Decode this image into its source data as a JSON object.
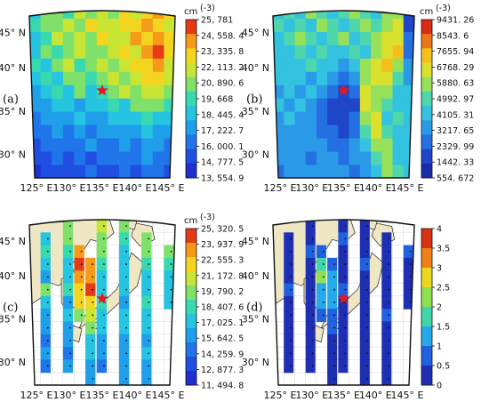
{
  "chart_data": [
    {
      "type": "heatmap",
      "panel_label": "(a)",
      "colorbar_unit": "cm",
      "colorbar_unit_exp": "(-3)",
      "colorbar_ticks": [
        "25, 781",
        "24, 558. 4",
        "23, 335. 8",
        "22, 113. 2",
        "20, 890. 6",
        "19, 668",
        "18, 445. 4",
        "17, 222. 7",
        "16, 000. 1",
        "14, 777. 5",
        "13, 554. 9"
      ],
      "vmin": 13554.9,
      "vmax": 25781,
      "x_ticks": [
        "125° E",
        "130° E",
        "135° E",
        "140° E",
        "145° E"
      ],
      "y_ticks": [
        "45° N",
        "40° N",
        "35° N",
        "30° N"
      ],
      "lon_range": [
        125,
        145
      ],
      "lat_range": [
        26,
        48
      ],
      "marker": {
        "lon": 135,
        "lat": 37.5,
        "symbol": "star"
      },
      "grid_rows": [
        [
          0.45,
          0.55,
          0.6,
          0.5,
          0.65,
          0.55,
          0.7,
          0.6,
          0.75,
          0.7,
          0.8,
          0.85,
          0.75
        ],
        [
          0.5,
          0.6,
          0.55,
          0.7,
          0.6,
          0.75,
          0.65,
          0.7,
          0.8,
          0.75,
          0.9,
          0.8,
          0.7
        ],
        [
          0.4,
          0.5,
          0.65,
          0.55,
          0.7,
          0.6,
          0.75,
          0.65,
          0.7,
          0.85,
          0.8,
          0.9,
          0.75
        ],
        [
          0.45,
          0.55,
          0.5,
          0.6,
          0.65,
          0.55,
          0.6,
          0.7,
          0.75,
          0.7,
          0.85,
          0.95,
          0.8
        ],
        [
          0.5,
          0.45,
          0.55,
          0.65,
          0.5,
          0.6,
          0.7,
          0.55,
          0.65,
          0.8,
          0.75,
          0.85,
          0.7
        ],
        [
          0.4,
          0.5,
          0.45,
          0.55,
          0.6,
          0.5,
          0.55,
          0.65,
          0.6,
          0.7,
          0.8,
          0.75,
          0.65
        ],
        [
          0.35,
          0.45,
          0.5,
          0.4,
          0.55,
          0.45,
          0.5,
          0.55,
          0.65,
          0.6,
          0.7,
          0.65,
          0.55
        ],
        [
          0.3,
          0.35,
          0.4,
          0.45,
          0.35,
          0.4,
          0.45,
          0.5,
          0.45,
          0.55,
          0.6,
          0.55,
          0.5
        ],
        [
          0.25,
          0.3,
          0.35,
          0.3,
          0.4,
          0.35,
          0.3,
          0.4,
          0.45,
          0.4,
          0.5,
          0.45,
          0.4
        ],
        [
          0.2,
          0.25,
          0.3,
          0.25,
          0.3,
          0.2,
          0.3,
          0.35,
          0.3,
          0.35,
          0.4,
          0.35,
          0.3
        ],
        [
          0.15,
          0.2,
          0.25,
          0.2,
          0.25,
          0.3,
          0.2,
          0.25,
          0.3,
          0.25,
          0.35,
          0.3,
          0.25
        ],
        [
          0.1,
          0.15,
          0.2,
          0.15,
          0.2,
          0.15,
          0.25,
          0.2,
          0.25,
          0.2,
          0.3,
          0.25,
          0.2
        ],
        [
          0.05,
          0.1,
          0.15,
          0.1,
          0.15,
          0.2,
          0.1,
          0.15,
          0.2,
          0.15,
          0.25,
          0.2,
          0.15
        ]
      ]
    },
    {
      "type": "heatmap",
      "panel_label": "(b)",
      "colorbar_unit": "cm",
      "colorbar_unit_exp": "(-3)",
      "colorbar_ticks": [
        "9431. 26",
        "8543. 6",
        "7655. 94",
        "6768. 29",
        "5880. 63",
        "4992. 97",
        "4105. 31",
        "3217. 65",
        "2329. 99",
        "1442. 33",
        "554. 672"
      ],
      "vmin": 554.672,
      "vmax": 9431.26,
      "x_ticks": [
        "125° E",
        "130° E",
        "135° E",
        "140° E",
        "145° E"
      ],
      "y_ticks": [
        "45° N",
        "40° N",
        "35° N",
        "30° N"
      ],
      "lon_range": [
        125,
        145
      ],
      "lat_range": [
        26,
        48
      ],
      "marker": {
        "lon": 135,
        "lat": 37.5,
        "symbol": "star"
      },
      "grid_rows": [
        [
          0.45,
          0.5,
          0.45,
          0.55,
          0.5,
          0.45,
          0.5,
          0.55,
          0.5,
          0.45,
          0.55,
          0.6,
          0.1
        ],
        [
          0.5,
          0.45,
          0.5,
          0.45,
          0.55,
          0.5,
          0.45,
          0.5,
          0.55,
          0.5,
          0.6,
          0.65,
          0.15
        ],
        [
          0.45,
          0.5,
          0.55,
          0.5,
          0.45,
          0.5,
          0.55,
          0.45,
          0.5,
          0.55,
          0.65,
          0.7,
          0.2
        ],
        [
          0.4,
          0.45,
          0.5,
          0.45,
          0.5,
          0.45,
          0.4,
          0.5,
          0.45,
          0.6,
          0.7,
          0.75,
          0.25
        ],
        [
          0.45,
          0.4,
          0.45,
          0.5,
          0.4,
          0.45,
          0.35,
          0.4,
          0.55,
          0.65,
          0.75,
          0.6,
          0.3
        ],
        [
          0.4,
          0.45,
          0.4,
          0.35,
          0.45,
          0.3,
          0.25,
          0.35,
          0.6,
          0.7,
          0.65,
          0.5,
          0.35
        ],
        [
          0.35,
          0.4,
          0.35,
          0.4,
          0.3,
          0.2,
          0.15,
          0.2,
          0.65,
          0.6,
          0.55,
          0.45,
          0.4
        ],
        [
          0.4,
          0.35,
          0.4,
          0.3,
          0.25,
          0.15,
          0.1,
          0.15,
          0.7,
          0.55,
          0.5,
          0.45,
          0.4
        ],
        [
          0.35,
          0.4,
          0.35,
          0.35,
          0.2,
          0.15,
          0.1,
          0.2,
          0.6,
          0.65,
          0.45,
          0.5,
          0.45
        ],
        [
          0.3,
          0.35,
          0.3,
          0.35,
          0.25,
          0.2,
          0.15,
          0.25,
          0.5,
          0.7,
          0.5,
          0.45,
          0.4
        ],
        [
          0.35,
          0.3,
          0.35,
          0.3,
          0.3,
          0.25,
          0.2,
          0.3,
          0.4,
          0.6,
          0.55,
          0.4,
          0.45
        ],
        [
          0.3,
          0.35,
          0.3,
          0.25,
          0.35,
          0.3,
          0.25,
          0.3,
          0.35,
          0.5,
          0.6,
          0.45,
          0.4
        ],
        [
          0.25,
          0.3,
          0.35,
          0.3,
          0.3,
          0.35,
          0.3,
          0.25,
          0.35,
          0.4,
          0.55,
          0.5,
          0.45
        ]
      ]
    },
    {
      "type": "heatmap",
      "panel_label": "(c)",
      "colorbar_unit": "cm",
      "colorbar_unit_exp": "(-3)",
      "colorbar_ticks": [
        "25, 320. 5",
        "23, 937. 9",
        "22, 555. 3",
        "21, 172. 8",
        "19, 790. 2",
        "18, 407. 6",
        "17, 025. 1",
        "15, 642. 5",
        "14, 259. 9",
        "12, 877. 3",
        "11, 494. 8"
      ],
      "vmin": 11494.8,
      "vmax": 25320.5,
      "x_ticks": [
        "125° E",
        "130° E",
        "135° E",
        "140° E",
        "145° E"
      ],
      "y_ticks": [
        "45° N",
        "40° N",
        "35° N",
        "30° N"
      ],
      "lon_range": [
        125,
        145
      ],
      "lat_range": [
        26,
        48
      ],
      "marker": {
        "lon": 135,
        "lat": 37.5,
        "symbol": "star"
      },
      "tracks": [
        {
          "col": 1,
          "rows": [
            1,
            2,
            3,
            4,
            5,
            6,
            7,
            8,
            9,
            10,
            11
          ],
          "values": [
            0.45,
            0.5,
            0.4,
            0.35,
            0.55,
            0.4,
            0.3,
            0.35,
            0.25,
            0.3,
            0.2
          ]
        },
        {
          "col": 3,
          "rows": [
            0,
            1,
            2,
            3,
            4,
            5,
            6,
            7,
            8,
            9,
            10,
            11
          ],
          "values": [
            0.55,
            0.6,
            0.5,
            0.45,
            0.4,
            0.5,
            0.35,
            0.4,
            0.3,
            0.35,
            0.25,
            0.3
          ]
        },
        {
          "col": 4,
          "rows": [
            2,
            3,
            4,
            5,
            6,
            7
          ],
          "values": [
            0.85,
            0.95,
            0.9,
            0.8,
            0.75,
            0.6
          ]
        },
        {
          "col": 5,
          "rows": [
            3,
            4,
            5,
            6,
            7,
            8,
            9,
            10,
            11,
            12
          ],
          "values": [
            0.85,
            0.9,
            0.95,
            0.8,
            0.7,
            0.55,
            0.45,
            0.4,
            0.35,
            0.3
          ]
        },
        {
          "col": 6,
          "rows": [
            0,
            1,
            2,
            3,
            4,
            5,
            6,
            7,
            8,
            9,
            10,
            11
          ],
          "values": [
            0.65,
            0.55,
            0.6,
            0.5,
            0.45,
            0.4,
            0.5,
            0.45,
            0.4,
            0.35,
            0.3,
            0.25
          ]
        },
        {
          "col": 8,
          "rows": [
            0,
            1,
            2,
            3,
            4,
            5,
            6,
            7,
            8,
            9,
            10,
            11,
            12
          ],
          "values": [
            0.55,
            0.5,
            0.45,
            0.4,
            0.45,
            0.4,
            0.35,
            0.45,
            0.4,
            0.35,
            0.3,
            0.35,
            0.3
          ]
        },
        {
          "col": 10,
          "rows": [
            1,
            2,
            3,
            4,
            5,
            6,
            7,
            8,
            9,
            10,
            11,
            12
          ],
          "values": [
            0.6,
            0.55,
            0.5,
            0.45,
            0.4,
            0.5,
            0.45,
            0.4,
            0.35,
            0.4,
            0.3,
            0.35
          ]
        },
        {
          "col": 12,
          "rows": [
            2,
            3,
            4,
            5,
            6
          ],
          "values": [
            0.55,
            0.5,
            0.45,
            0.4,
            0.45
          ]
        }
      ]
    },
    {
      "type": "heatmap",
      "panel_label": "(d)",
      "colorbar_ticks": [
        "4",
        "3.5",
        "3",
        "2.5",
        "2",
        "1.5",
        "1",
        "0.5",
        "0"
      ],
      "vmin": 0,
      "vmax": 4,
      "x_ticks": [
        "125° E",
        "130° E",
        "135° E",
        "140° E",
        "145° E"
      ],
      "y_ticks": [
        "45° N",
        "40° N",
        "35° N",
        "30° N"
      ],
      "lon_range": [
        125,
        145
      ],
      "lat_range": [
        26,
        48
      ],
      "marker": {
        "lon": 135,
        "lat": 37.5,
        "symbol": "star"
      },
      "tracks": [
        {
          "col": 1,
          "rows": [
            1,
            2,
            3,
            4,
            5,
            6,
            7,
            8,
            9,
            10,
            11
          ],
          "values": [
            0.1,
            0.12,
            0.08,
            0.1,
            0.15,
            0.1,
            0.08,
            0.12,
            0.1,
            0.08,
            0.1
          ]
        },
        {
          "col": 3,
          "rows": [
            0,
            1,
            2,
            3,
            4,
            5,
            6,
            7,
            8,
            9,
            10,
            11
          ],
          "values": [
            0.12,
            0.1,
            0.15,
            0.1,
            0.12,
            0.1,
            0.08,
            0.1,
            0.12,
            0.1,
            0.08,
            0.1
          ]
        },
        {
          "col": 4,
          "rows": [
            2,
            3,
            4,
            5,
            6,
            7
          ],
          "values": [
            0.15,
            0.45,
            0.6,
            0.35,
            0.25,
            0.15
          ]
        },
        {
          "col": 5,
          "rows": [
            3,
            4,
            5,
            6,
            7,
            8,
            9,
            10,
            11,
            12
          ],
          "values": [
            0.2,
            0.3,
            0.35,
            0.3,
            0.2,
            0.15,
            0.12,
            0.1,
            0.12,
            0.1
          ]
        },
        {
          "col": 6,
          "rows": [
            0,
            1,
            2,
            3,
            4,
            5,
            6,
            7,
            8,
            9,
            10,
            11
          ],
          "values": [
            0.12,
            0.15,
            0.1,
            0.12,
            0.1,
            0.15,
            0.12,
            0.1,
            0.08,
            0.1,
            0.12,
            0.1
          ]
        },
        {
          "col": 8,
          "rows": [
            0,
            1,
            2,
            3,
            4,
            5,
            6,
            7,
            8,
            9,
            10,
            11,
            12
          ],
          "values": [
            0.1,
            0.12,
            0.1,
            0.15,
            0.12,
            0.1,
            0.12,
            0.1,
            0.12,
            0.1,
            0.08,
            0.1,
            0.12
          ]
        },
        {
          "col": 10,
          "rows": [
            1,
            2,
            3,
            4,
            5,
            6,
            7,
            8,
            9,
            10,
            11,
            12
          ],
          "values": [
            0.12,
            0.1,
            0.12,
            0.1,
            0.12,
            0.1,
            0.15,
            0.12,
            0.1,
            0.12,
            0.1,
            0.12
          ]
        },
        {
          "col": 12,
          "rows": [
            2,
            3,
            4,
            5,
            6
          ],
          "values": [
            0.15,
            0.12,
            0.1,
            0.12,
            0.1
          ]
        }
      ]
    }
  ],
  "colors": {
    "panels_ac_scale": [
      "#1f2fd0",
      "#1f4ee0",
      "#2175ea",
      "#1f9fea",
      "#25c4e0",
      "#39d9b0",
      "#7fe06a",
      "#c8e534",
      "#f3d51f",
      "#f69a1a",
      "#e63a17"
    ],
    "panel_b_scale": [
      "#1a2ba8",
      "#1f45c9",
      "#2470e2",
      "#2a9ae8",
      "#33c2e0",
      "#4ed6ad",
      "#97e05a",
      "#d9e12e",
      "#f5c01c",
      "#ee7517",
      "#d92b14"
    ],
    "panel_d_scale": [
      "#1f2fb3",
      "#2061e0",
      "#24a9ea",
      "#3fd7a8",
      "#8fe04e",
      "#ecd71c",
      "#f07f16",
      "#d93014"
    ],
    "land": "#efe6c4",
    "marker": "#e41a1c"
  }
}
